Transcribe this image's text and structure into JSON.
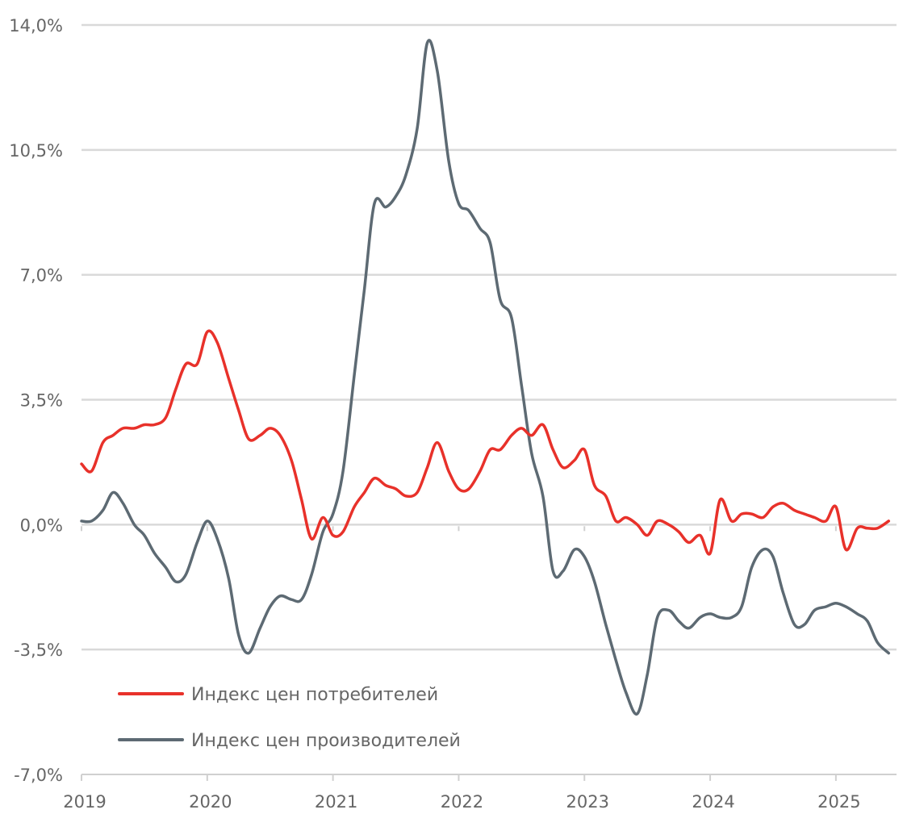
{
  "chart_data": {
    "type": "line",
    "title": "",
    "xlabel": "",
    "ylabel": "",
    "xlim": [
      2019.0,
      2025.45
    ],
    "ylim": [
      -7.0,
      14.0
    ],
    "y_ticks": [
      {
        "value": 14.0,
        "label": "14,0%"
      },
      {
        "value": 10.5,
        "label": "10,5%"
      },
      {
        "value": 7.0,
        "label": "7,0%"
      },
      {
        "value": 3.5,
        "label": "3,5%"
      },
      {
        "value": 0.0,
        "label": "0,0%"
      },
      {
        "value": -3.5,
        "label": "-3,5%"
      },
      {
        "value": -7.0,
        "label": "-7,0%"
      }
    ],
    "x_ticks": [
      {
        "value": 2019,
        "label": "2019"
      },
      {
        "value": 2020,
        "label": "2020"
      },
      {
        "value": 2021,
        "label": "2021"
      },
      {
        "value": 2022,
        "label": "2022"
      },
      {
        "value": 2023,
        "label": "2023"
      },
      {
        "value": 2024,
        "label": "2024"
      },
      {
        "value": 2025,
        "label": "2025"
      }
    ],
    "grid": true,
    "legend_position": "bottom-left",
    "series": [
      {
        "name": "Индекс цен потребителей",
        "color": "#e8312a",
        "points": [
          [
            2019.0,
            1.7
          ],
          [
            2019.08,
            1.5
          ],
          [
            2019.17,
            2.3
          ],
          [
            2019.25,
            2.5
          ],
          [
            2019.33,
            2.7
          ],
          [
            2019.42,
            2.7
          ],
          [
            2019.5,
            2.8
          ],
          [
            2019.58,
            2.8
          ],
          [
            2019.67,
            3.0
          ],
          [
            2019.75,
            3.8
          ],
          [
            2019.83,
            4.5
          ],
          [
            2019.92,
            4.5
          ],
          [
            2020.0,
            5.4
          ],
          [
            2020.08,
            5.1
          ],
          [
            2020.17,
            4.1
          ],
          [
            2020.25,
            3.2
          ],
          [
            2020.33,
            2.4
          ],
          [
            2020.42,
            2.5
          ],
          [
            2020.5,
            2.7
          ],
          [
            2020.58,
            2.5
          ],
          [
            2020.67,
            1.8
          ],
          [
            2020.75,
            0.7
          ],
          [
            2020.83,
            -0.4
          ],
          [
            2020.92,
            0.2
          ],
          [
            2021.0,
            -0.3
          ],
          [
            2021.08,
            -0.2
          ],
          [
            2021.17,
            0.5
          ],
          [
            2021.25,
            0.9
          ],
          [
            2021.33,
            1.3
          ],
          [
            2021.42,
            1.1
          ],
          [
            2021.5,
            1.0
          ],
          [
            2021.58,
            0.8
          ],
          [
            2021.67,
            0.9
          ],
          [
            2021.75,
            1.6
          ],
          [
            2021.83,
            2.3
          ],
          [
            2021.92,
            1.5
          ],
          [
            2022.0,
            1.0
          ],
          [
            2022.08,
            1.0
          ],
          [
            2022.17,
            1.5
          ],
          [
            2022.25,
            2.1
          ],
          [
            2022.33,
            2.1
          ],
          [
            2022.42,
            2.5
          ],
          [
            2022.5,
            2.7
          ],
          [
            2022.58,
            2.5
          ],
          [
            2022.67,
            2.8
          ],
          [
            2022.75,
            2.1
          ],
          [
            2022.83,
            1.6
          ],
          [
            2022.92,
            1.8
          ],
          [
            2023.0,
            2.1
          ],
          [
            2023.08,
            1.1
          ],
          [
            2023.17,
            0.8
          ],
          [
            2023.25,
            0.1
          ],
          [
            2023.33,
            0.2
          ],
          [
            2023.42,
            0.0
          ],
          [
            2023.5,
            -0.3
          ],
          [
            2023.58,
            0.1
          ],
          [
            2023.67,
            0.0
          ],
          [
            2023.75,
            -0.2
          ],
          [
            2023.83,
            -0.5
          ],
          [
            2023.92,
            -0.3
          ],
          [
            2024.0,
            -0.8
          ],
          [
            2024.08,
            0.7
          ],
          [
            2024.17,
            0.1
          ],
          [
            2024.25,
            0.3
          ],
          [
            2024.33,
            0.3
          ],
          [
            2024.42,
            0.2
          ],
          [
            2024.5,
            0.5
          ],
          [
            2024.58,
            0.6
          ],
          [
            2024.67,
            0.4
          ],
          [
            2024.75,
            0.3
          ],
          [
            2024.83,
            0.2
          ],
          [
            2024.92,
            0.1
          ],
          [
            2025.0,
            0.5
          ],
          [
            2025.08,
            -0.7
          ],
          [
            2025.17,
            -0.1
          ],
          [
            2025.25,
            -0.1
          ],
          [
            2025.33,
            -0.1
          ],
          [
            2025.42,
            0.1
          ]
        ]
      },
      {
        "name": "Индекс цен производителей",
        "color": "#5d6a73",
        "points": [
          [
            2019.0,
            0.1
          ],
          [
            2019.08,
            0.1
          ],
          [
            2019.17,
            0.4
          ],
          [
            2019.25,
            0.9
          ],
          [
            2019.33,
            0.6
          ],
          [
            2019.42,
            0.0
          ],
          [
            2019.5,
            -0.3
          ],
          [
            2019.58,
            -0.8
          ],
          [
            2019.67,
            -1.2
          ],
          [
            2019.75,
            -1.6
          ],
          [
            2019.83,
            -1.4
          ],
          [
            2019.92,
            -0.5
          ],
          [
            2020.0,
            0.1
          ],
          [
            2020.08,
            -0.4
          ],
          [
            2020.17,
            -1.5
          ],
          [
            2020.25,
            -3.1
          ],
          [
            2020.33,
            -3.6
          ],
          [
            2020.42,
            -2.9
          ],
          [
            2020.5,
            -2.3
          ],
          [
            2020.58,
            -2.0
          ],
          [
            2020.67,
            -2.1
          ],
          [
            2020.75,
            -2.1
          ],
          [
            2020.83,
            -1.4
          ],
          [
            2020.92,
            -0.2
          ],
          [
            2021.0,
            0.3
          ],
          [
            2021.08,
            1.5
          ],
          [
            2021.17,
            4.2
          ],
          [
            2021.25,
            6.6
          ],
          [
            2021.33,
            9.0
          ],
          [
            2021.42,
            8.9
          ],
          [
            2021.5,
            9.2
          ],
          [
            2021.58,
            9.8
          ],
          [
            2021.67,
            11.1
          ],
          [
            2021.75,
            13.5
          ],
          [
            2021.83,
            12.7
          ],
          [
            2021.92,
            10.2
          ],
          [
            2022.0,
            9.0
          ],
          [
            2022.08,
            8.8
          ],
          [
            2022.17,
            8.3
          ],
          [
            2022.25,
            7.9
          ],
          [
            2022.33,
            6.3
          ],
          [
            2022.42,
            5.8
          ],
          [
            2022.5,
            3.9
          ],
          [
            2022.58,
            2.0
          ],
          [
            2022.67,
            0.8
          ],
          [
            2022.75,
            -1.3
          ],
          [
            2022.83,
            -1.3
          ],
          [
            2022.92,
            -0.7
          ],
          [
            2023.0,
            -0.9
          ],
          [
            2023.08,
            -1.6
          ],
          [
            2023.17,
            -2.8
          ],
          [
            2023.25,
            -3.8
          ],
          [
            2023.33,
            -4.7
          ],
          [
            2023.42,
            -5.3
          ],
          [
            2023.5,
            -4.2
          ],
          [
            2023.58,
            -2.6
          ],
          [
            2023.67,
            -2.4
          ],
          [
            2023.75,
            -2.7
          ],
          [
            2023.83,
            -2.9
          ],
          [
            2023.92,
            -2.6
          ],
          [
            2024.0,
            -2.5
          ],
          [
            2024.08,
            -2.6
          ],
          [
            2024.17,
            -2.6
          ],
          [
            2024.25,
            -2.3
          ],
          [
            2024.33,
            -1.2
          ],
          [
            2024.42,
            -0.7
          ],
          [
            2024.5,
            -0.9
          ],
          [
            2024.58,
            -1.9
          ],
          [
            2024.67,
            -2.8
          ],
          [
            2024.75,
            -2.8
          ],
          [
            2024.83,
            -2.4
          ],
          [
            2024.92,
            -2.3
          ],
          [
            2025.0,
            -2.2
          ],
          [
            2025.08,
            -2.3
          ],
          [
            2025.17,
            -2.5
          ],
          [
            2025.25,
            -2.7
          ],
          [
            2025.33,
            -3.3
          ],
          [
            2025.42,
            -3.6
          ]
        ]
      }
    ]
  }
}
